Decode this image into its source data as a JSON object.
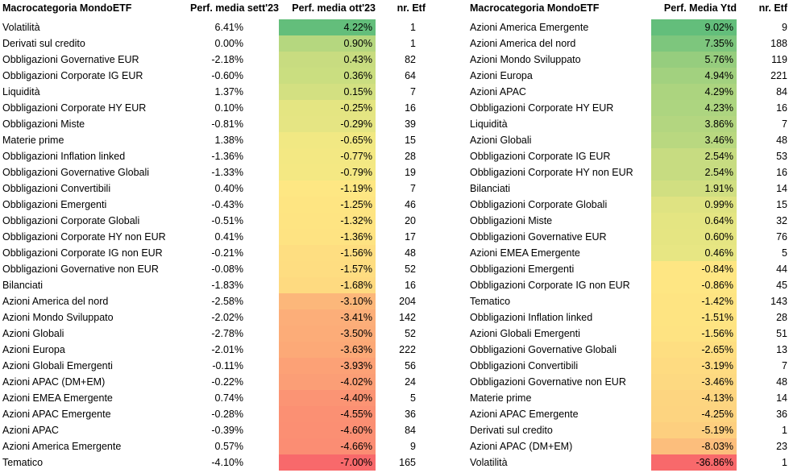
{
  "left_table": {
    "headers": {
      "category": "Macrocategoria MondoETF",
      "sep": "Perf. media sett'23",
      "oct": "Perf. media ott'23",
      "n": "nr. Etf"
    },
    "rows": [
      {
        "category": "Volatilità",
        "sep": "6.41%",
        "oct": "4.22%",
        "n": "1",
        "color": "#63be7b"
      },
      {
        "category": "Derivati sul credito",
        "sep": "0.00%",
        "oct": "0.90%",
        "n": "1",
        "color": "#b5d77f"
      },
      {
        "category": "Obbligazioni Governative EUR",
        "sep": "-2.18%",
        "oct": "0.43%",
        "n": "82",
        "color": "#c8dc80"
      },
      {
        "category": "Obbligazioni Corporate IG EUR",
        "sep": "-0.60%",
        "oct": "0.36%",
        "n": "64",
        "color": "#cade80"
      },
      {
        "category": "Liquidità",
        "sep": "1.37%",
        "oct": "0.15%",
        "n": "7",
        "color": "#d3e081"
      },
      {
        "category": "Obbligazioni Corporate HY EUR",
        "sep": "0.10%",
        "oct": "-0.25%",
        "n": "16",
        "color": "#e4e582"
      },
      {
        "category": "Obbligazioni Miste",
        "sep": "-0.81%",
        "oct": "-0.29%",
        "n": "39",
        "color": "#e5e583"
      },
      {
        "category": "Materie prime",
        "sep": "1.38%",
        "oct": "-0.65%",
        "n": "15",
        "color": "#f1e883"
      },
      {
        "category": "Obbligazioni Inflation linked",
        "sep": "-1.36%",
        "oct": "-0.77%",
        "n": "28",
        "color": "#f3e883"
      },
      {
        "category": "Obbligazioni Governative Globali",
        "sep": "-1.33%",
        "oct": "-0.79%",
        "n": "19",
        "color": "#f4e883"
      },
      {
        "category": "Obbligazioni Convertibili",
        "sep": "0.40%",
        "oct": "-1.19%",
        "n": "7",
        "color": "#fee783"
      },
      {
        "category": "Obbligazioni Emergenti",
        "sep": "-0.43%",
        "oct": "-1.25%",
        "n": "46",
        "color": "#fee582"
      },
      {
        "category": "Obbligazioni Corporate Globali",
        "sep": "-0.51%",
        "oct": "-1.32%",
        "n": "20",
        "color": "#fee482"
      },
      {
        "category": "Obbligazioni Corporate HY non EUR",
        "sep": "0.41%",
        "oct": "-1.36%",
        "n": "17",
        "color": "#fee382"
      },
      {
        "category": "Obbligazioni Corporate IG non EUR",
        "sep": "-0.21%",
        "oct": "-1.56%",
        "n": "48",
        "color": "#fede81"
      },
      {
        "category": "Obbligazioni Governative non EUR",
        "sep": "-0.08%",
        "oct": "-1.57%",
        "n": "52",
        "color": "#fedd81"
      },
      {
        "category": "Bilanciati",
        "sep": "-1.83%",
        "oct": "-1.68%",
        "n": "16",
        "color": "#feda80"
      },
      {
        "category": "Azioni America del nord",
        "sep": "-2.58%",
        "oct": "-3.10%",
        "n": "204",
        "color": "#fcb77a"
      },
      {
        "category": "Azioni Mondo Sviluppato",
        "sep": "-2.02%",
        "oct": "-3.41%",
        "n": "142",
        "color": "#fcae79"
      },
      {
        "category": "Azioni Globali",
        "sep": "-2.78%",
        "oct": "-3.50%",
        "n": "52",
        "color": "#fcac78"
      },
      {
        "category": "Azioni Europa",
        "sep": "-2.01%",
        "oct": "-3.63%",
        "n": "222",
        "color": "#fca977"
      },
      {
        "category": "Azioni Globali Emergenti",
        "sep": "-0.11%",
        "oct": "-3.93%",
        "n": "56",
        "color": "#fca176"
      },
      {
        "category": "Azioni APAC (DM+EM)",
        "sep": "-0.22%",
        "oct": "-4.02%",
        "n": "24",
        "color": "#fb9e76"
      },
      {
        "category": "Azioni EMEA Emergente",
        "sep": "0.74%",
        "oct": "-4.40%",
        "n": "5",
        "color": "#fb9474"
      },
      {
        "category": "Azioni APAC Emergente",
        "sep": "-0.28%",
        "oct": "-4.55%",
        "n": "36",
        "color": "#fb9073"
      },
      {
        "category": "Azioni APAC",
        "sep": "-0.39%",
        "oct": "-4.60%",
        "n": "84",
        "color": "#fb8f73"
      },
      {
        "category": "Azioni America Emergente",
        "sep": "0.57%",
        "oct": "-4.66%",
        "n": "9",
        "color": "#fb8d73"
      },
      {
        "category": "Tematico",
        "sep": "-4.10%",
        "oct": "-7.00%",
        "n": "165",
        "color": "#f8696b"
      }
    ]
  },
  "right_table": {
    "headers": {
      "category": "Macrocategoria MondoETF",
      "ytd": "Perf. Media Ytd",
      "n": "nr. Etf"
    },
    "rows": [
      {
        "category": "Azioni America Emergente",
        "ytd": "9.02%",
        "n": "9",
        "color": "#63be7b"
      },
      {
        "category": "Azioni America del nord",
        "ytd": "7.35%",
        "n": "188",
        "color": "#7dc67d"
      },
      {
        "category": "Azioni Mondo Sviluppato",
        "ytd": "5.76%",
        "n": "119",
        "color": "#96cd7e"
      },
      {
        "category": "Azioni Europa",
        "ytd": "4.94%",
        "n": "221",
        "color": "#a2d17f"
      },
      {
        "category": "Azioni APAC",
        "ytd": "4.29%",
        "n": "84",
        "color": "#acd47f"
      },
      {
        "category": "Obbligazioni Corporate HY EUR",
        "ytd": "4.23%",
        "n": "16",
        "color": "#add580"
      },
      {
        "category": "Liquidità",
        "ytd": "3.86%",
        "n": "7",
        "color": "#b3d680"
      },
      {
        "category": "Azioni Globali",
        "ytd": "3.46%",
        "n": "48",
        "color": "#b9d880"
      },
      {
        "category": "Obbligazioni Corporate IG EUR",
        "ytd": "2.54%",
        "n": "53",
        "color": "#c7dc81"
      },
      {
        "category": "Obbligazioni Corporate HY non EUR",
        "ytd": "2.54%",
        "n": "16",
        "color": "#c7dc81"
      },
      {
        "category": "Bilanciati",
        "ytd": "1.91%",
        "n": "14",
        "color": "#d1df81"
      },
      {
        "category": "Obbligazioni Corporate Globali",
        "ytd": "0.99%",
        "n": "15",
        "color": "#dfe382"
      },
      {
        "category": "Obbligazioni Miste",
        "ytd": "0.64%",
        "n": "32",
        "color": "#e4e582"
      },
      {
        "category": "Obbligazioni Governative EUR",
        "ytd": "0.60%",
        "n": "76",
        "color": "#e5e582"
      },
      {
        "category": "Azioni EMEA Emergente",
        "ytd": "0.46%",
        "n": "5",
        "color": "#e7e683"
      },
      {
        "category": "Obbligazioni Emergenti",
        "ytd": "-0.84%",
        "n": "44",
        "color": "#fee683"
      },
      {
        "category": "Obbligazioni Corporate IG non EUR",
        "ytd": "-0.86%",
        "n": "45",
        "color": "#fee683"
      },
      {
        "category": "Tematico",
        "ytd": "-1.42%",
        "n": "143",
        "color": "#fee482"
      },
      {
        "category": "Obbligazioni Inflation linked",
        "ytd": "-1.51%",
        "n": "28",
        "color": "#fee482"
      },
      {
        "category": "Azioni Globali Emergenti",
        "ytd": "-1.56%",
        "n": "51",
        "color": "#fee382"
      },
      {
        "category": "Obbligazioni Governative Globali",
        "ytd": "-2.65%",
        "n": "13",
        "color": "#fede81"
      },
      {
        "category": "Obbligazioni Convertibili",
        "ytd": "-3.19%",
        "n": "7",
        "color": "#fedb81"
      },
      {
        "category": "Obbligazioni Governative non EUR",
        "ytd": "-3.46%",
        "n": "48",
        "color": "#fdd981"
      },
      {
        "category": "Materie prime",
        "ytd": "-4.13%",
        "n": "14",
        "color": "#fdd580"
      },
      {
        "category": "Azioni APAC Emergente",
        "ytd": "-4.25%",
        "n": "36",
        "color": "#fdd480"
      },
      {
        "category": "Derivati sul credito",
        "ytd": "-5.19%",
        "n": "1",
        "color": "#fdcf7f"
      },
      {
        "category": "Azioni APAC (DM+EM)",
        "ytd": "-8.03%",
        "n": "23",
        "color": "#fcbe7c"
      },
      {
        "category": "Volatilità",
        "ytd": "-36.86%",
        "n": "1",
        "color": "#f8696b"
      }
    ]
  }
}
